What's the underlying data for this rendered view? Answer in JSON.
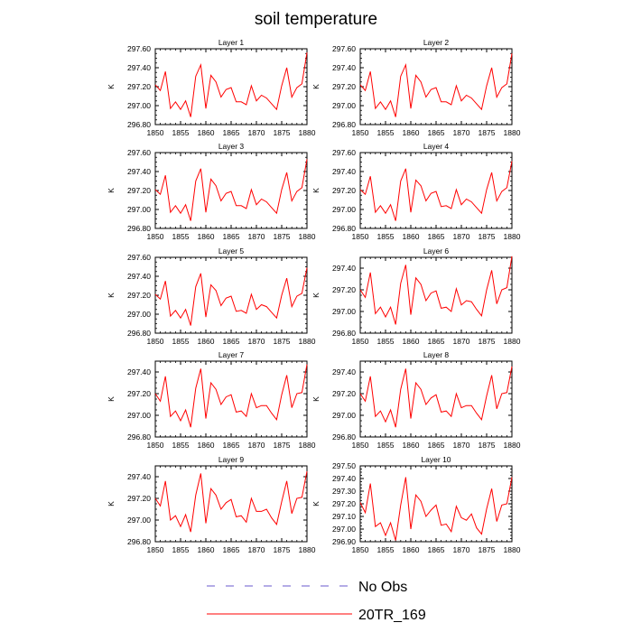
{
  "title": "soil temperature",
  "legend": [
    {
      "label": "No Obs",
      "color": "#6a5acd",
      "dash": true
    },
    {
      "label": "20TR_169",
      "color": "#ff0000",
      "dash": false
    }
  ],
  "chart_data": [
    {
      "type": "line",
      "title": "Layer 1",
      "ylabel": "K",
      "xlim": [
        1850,
        1880
      ],
      "ylim": [
        296.8,
        297.6
      ],
      "yticks": [
        "296.80",
        "297.00",
        "297.20",
        "297.40",
        "297.60"
      ],
      "xticks": [
        "1850",
        "1855",
        "1860",
        "1865",
        "1870",
        "1875",
        "1880"
      ],
      "series": [
        {
          "x": [
            1850,
            1851,
            1852,
            1853,
            1854,
            1855,
            1856,
            1857,
            1858,
            1859,
            1860,
            1861,
            1862,
            1863,
            1864,
            1865,
            1866,
            1867,
            1868,
            1869,
            1870,
            1871,
            1872,
            1873,
            1874,
            1875,
            1876,
            1877,
            1878,
            1879,
            1880
          ],
          "values": [
            297.22,
            297.16,
            297.36,
            296.97,
            297.04,
            296.96,
            297.05,
            296.88,
            297.31,
            297.43,
            296.97,
            297.32,
            297.25,
            297.09,
            297.17,
            297.19,
            297.04,
            297.04,
            297.01,
            297.21,
            297.05,
            297.11,
            297.08,
            297.02,
            296.96,
            297.21,
            297.4,
            297.09,
            297.19,
            297.23,
            297.56
          ],
          "color": "#ff0000"
        }
      ]
    },
    {
      "type": "line",
      "title": "Layer 2",
      "ylabel": "K",
      "xlim": [
        1850,
        1880
      ],
      "ylim": [
        296.8,
        297.6
      ],
      "yticks": [
        "296.80",
        "297.00",
        "297.20",
        "297.40",
        "297.60"
      ],
      "xticks": [
        "1850",
        "1855",
        "1860",
        "1865",
        "1870",
        "1875",
        "1880"
      ],
      "series": [
        {
          "x": [
            1850,
            1851,
            1852,
            1853,
            1854,
            1855,
            1856,
            1857,
            1858,
            1859,
            1860,
            1861,
            1862,
            1863,
            1864,
            1865,
            1866,
            1867,
            1868,
            1869,
            1870,
            1871,
            1872,
            1873,
            1874,
            1875,
            1876,
            1877,
            1878,
            1879,
            1880
          ],
          "values": [
            297.22,
            297.16,
            297.36,
            296.97,
            297.04,
            296.96,
            297.05,
            296.88,
            297.31,
            297.43,
            296.97,
            297.32,
            297.25,
            297.09,
            297.17,
            297.19,
            297.04,
            297.04,
            297.01,
            297.21,
            297.05,
            297.11,
            297.08,
            297.02,
            296.96,
            297.21,
            297.4,
            297.09,
            297.19,
            297.23,
            297.55
          ],
          "color": "#ff0000"
        }
      ]
    },
    {
      "type": "line",
      "title": "Layer 3",
      "ylabel": "K",
      "xlim": [
        1850,
        1880
      ],
      "ylim": [
        296.8,
        297.6
      ],
      "yticks": [
        "296.80",
        "297.00",
        "297.20",
        "297.40",
        "297.60"
      ],
      "xticks": [
        "1850",
        "1855",
        "1860",
        "1865",
        "1870",
        "1875",
        "1880"
      ],
      "series": [
        {
          "x": [
            1850,
            1851,
            1852,
            1853,
            1854,
            1855,
            1856,
            1857,
            1858,
            1859,
            1860,
            1861,
            1862,
            1863,
            1864,
            1865,
            1866,
            1867,
            1868,
            1869,
            1870,
            1871,
            1872,
            1873,
            1874,
            1875,
            1876,
            1877,
            1878,
            1879,
            1880
          ],
          "values": [
            297.21,
            297.16,
            297.36,
            296.97,
            297.04,
            296.96,
            297.05,
            296.88,
            297.3,
            297.43,
            296.97,
            297.32,
            297.25,
            297.09,
            297.17,
            297.19,
            297.04,
            297.04,
            297.01,
            297.21,
            297.05,
            297.11,
            297.08,
            297.02,
            296.96,
            297.21,
            297.39,
            297.09,
            297.19,
            297.23,
            297.53
          ],
          "color": "#ff0000"
        }
      ]
    },
    {
      "type": "line",
      "title": "Layer 4",
      "ylabel": "K",
      "xlim": [
        1850,
        1880
      ],
      "ylim": [
        296.8,
        297.6
      ],
      "yticks": [
        "296.80",
        "297.00",
        "297.20",
        "297.40",
        "297.60"
      ],
      "xticks": [
        "1850",
        "1855",
        "1860",
        "1865",
        "1870",
        "1875",
        "1880"
      ],
      "series": [
        {
          "x": [
            1850,
            1851,
            1852,
            1853,
            1854,
            1855,
            1856,
            1857,
            1858,
            1859,
            1860,
            1861,
            1862,
            1863,
            1864,
            1865,
            1866,
            1867,
            1868,
            1869,
            1870,
            1871,
            1872,
            1873,
            1874,
            1875,
            1876,
            1877,
            1878,
            1879,
            1880
          ],
          "values": [
            297.21,
            297.16,
            297.35,
            296.97,
            297.04,
            296.96,
            297.05,
            296.88,
            297.3,
            297.43,
            296.97,
            297.31,
            297.25,
            297.09,
            297.17,
            297.19,
            297.03,
            297.04,
            297.01,
            297.21,
            297.05,
            297.11,
            297.08,
            297.02,
            296.96,
            297.21,
            297.39,
            297.09,
            297.19,
            297.23,
            297.51
          ],
          "color": "#ff0000"
        }
      ]
    },
    {
      "type": "line",
      "title": "Layer 5",
      "ylabel": "K",
      "xlim": [
        1850,
        1880
      ],
      "ylim": [
        296.8,
        297.6
      ],
      "yticks": [
        "296.80",
        "297.00",
        "297.20",
        "297.40",
        "297.60"
      ],
      "xticks": [
        "1850",
        "1855",
        "1860",
        "1865",
        "1870",
        "1875",
        "1880"
      ],
      "series": [
        {
          "x": [
            1850,
            1851,
            1852,
            1853,
            1854,
            1855,
            1856,
            1857,
            1858,
            1859,
            1860,
            1861,
            1862,
            1863,
            1864,
            1865,
            1866,
            1867,
            1868,
            1869,
            1870,
            1871,
            1872,
            1873,
            1874,
            1875,
            1876,
            1877,
            1878,
            1879,
            1880
          ],
          "values": [
            297.21,
            297.16,
            297.35,
            296.98,
            297.04,
            296.96,
            297.05,
            296.88,
            297.29,
            297.43,
            296.97,
            297.31,
            297.25,
            297.09,
            297.17,
            297.19,
            297.03,
            297.04,
            297.01,
            297.21,
            297.05,
            297.1,
            297.08,
            297.02,
            296.96,
            297.2,
            297.38,
            297.08,
            297.19,
            297.22,
            297.49
          ],
          "color": "#ff0000"
        }
      ]
    },
    {
      "type": "line",
      "title": "Layer 6",
      "ylabel": "K",
      "xlim": [
        1850,
        1880
      ],
      "ylim": [
        296.8,
        297.5
      ],
      "yticks": [
        "296.80",
        "297.00",
        "297.20",
        "297.40"
      ],
      "xticks": [
        "1850",
        "1855",
        "1860",
        "1865",
        "1870",
        "1875",
        "1880"
      ],
      "series": [
        {
          "x": [
            1850,
            1851,
            1852,
            1853,
            1854,
            1855,
            1856,
            1857,
            1858,
            1859,
            1860,
            1861,
            1862,
            1863,
            1864,
            1865,
            1866,
            1867,
            1868,
            1869,
            1870,
            1871,
            1872,
            1873,
            1874,
            1875,
            1876,
            1877,
            1878,
            1879,
            1880
          ],
          "values": [
            297.2,
            297.13,
            297.36,
            296.98,
            297.04,
            296.95,
            297.04,
            296.88,
            297.26,
            297.43,
            296.97,
            297.31,
            297.25,
            297.1,
            297.17,
            297.19,
            297.03,
            297.04,
            297.0,
            297.21,
            297.06,
            297.1,
            297.09,
            297.02,
            296.96,
            297.2,
            297.38,
            297.07,
            297.2,
            297.22,
            297.51
          ],
          "color": "#ff0000"
        }
      ]
    },
    {
      "type": "line",
      "title": "Layer 7",
      "ylabel": "K",
      "xlim": [
        1850,
        1880
      ],
      "ylim": [
        296.8,
        297.5
      ],
      "yticks": [
        "296.80",
        "297.00",
        "297.20",
        "297.40"
      ],
      "xticks": [
        "1850",
        "1855",
        "1860",
        "1865",
        "1870",
        "1875",
        "1880"
      ],
      "series": [
        {
          "x": [
            1850,
            1851,
            1852,
            1853,
            1854,
            1855,
            1856,
            1857,
            1858,
            1859,
            1860,
            1861,
            1862,
            1863,
            1864,
            1865,
            1866,
            1867,
            1868,
            1869,
            1870,
            1871,
            1872,
            1873,
            1874,
            1875,
            1876,
            1877,
            1878,
            1879,
            1880
          ],
          "values": [
            297.2,
            297.13,
            297.36,
            296.99,
            297.04,
            296.95,
            297.05,
            296.89,
            297.25,
            297.43,
            296.97,
            297.3,
            297.24,
            297.1,
            297.17,
            297.19,
            297.03,
            297.04,
            296.99,
            297.2,
            297.07,
            297.09,
            297.09,
            297.02,
            296.96,
            297.19,
            297.37,
            297.07,
            297.2,
            297.21,
            297.47
          ],
          "color": "#ff0000"
        }
      ]
    },
    {
      "type": "line",
      "title": "Layer 8",
      "ylabel": "K",
      "xlim": [
        1850,
        1880
      ],
      "ylim": [
        296.8,
        297.5
      ],
      "yticks": [
        "296.80",
        "297.00",
        "297.20",
        "297.40"
      ],
      "xticks": [
        "1850",
        "1855",
        "1860",
        "1865",
        "1870",
        "1875",
        "1880"
      ],
      "series": [
        {
          "x": [
            1850,
            1851,
            1852,
            1853,
            1854,
            1855,
            1856,
            1857,
            1858,
            1859,
            1860,
            1861,
            1862,
            1863,
            1864,
            1865,
            1866,
            1867,
            1868,
            1869,
            1870,
            1871,
            1872,
            1873,
            1874,
            1875,
            1876,
            1877,
            1878,
            1879,
            1880
          ],
          "values": [
            297.2,
            297.13,
            297.36,
            296.99,
            297.04,
            296.94,
            297.05,
            296.89,
            297.24,
            297.43,
            296.97,
            297.3,
            297.24,
            297.1,
            297.16,
            297.19,
            297.03,
            297.04,
            296.99,
            297.2,
            297.07,
            297.09,
            297.09,
            297.02,
            296.96,
            297.18,
            297.37,
            297.06,
            297.2,
            297.21,
            297.45
          ],
          "color": "#ff0000"
        }
      ]
    },
    {
      "type": "line",
      "title": "Layer 9",
      "ylabel": "K",
      "xlim": [
        1850,
        1880
      ],
      "ylim": [
        296.8,
        297.5
      ],
      "yticks": [
        "296.80",
        "297.00",
        "297.20",
        "297.40"
      ],
      "xticks": [
        "1850",
        "1855",
        "1860",
        "1865",
        "1870",
        "1875",
        "1880"
      ],
      "series": [
        {
          "x": [
            1850,
            1851,
            1852,
            1853,
            1854,
            1855,
            1856,
            1857,
            1858,
            1859,
            1860,
            1861,
            1862,
            1863,
            1864,
            1865,
            1866,
            1867,
            1868,
            1869,
            1870,
            1871,
            1872,
            1873,
            1874,
            1875,
            1876,
            1877,
            1878,
            1879,
            1880
          ],
          "values": [
            297.2,
            297.13,
            297.36,
            297.0,
            297.04,
            296.94,
            297.05,
            296.89,
            297.23,
            297.43,
            296.97,
            297.29,
            297.23,
            297.1,
            297.16,
            297.19,
            297.03,
            297.04,
            296.98,
            297.2,
            297.08,
            297.08,
            297.1,
            297.02,
            296.96,
            297.17,
            297.36,
            297.06,
            297.2,
            297.21,
            297.45
          ],
          "color": "#ff0000"
        }
      ]
    },
    {
      "type": "line",
      "title": "Layer 10",
      "ylabel": "K",
      "xlim": [
        1850,
        1880
      ],
      "ylim": [
        296.9,
        297.5
      ],
      "yticks": [
        "296.90",
        "297.00",
        "297.10",
        "297.20",
        "297.30",
        "297.40",
        "297.50"
      ],
      "xticks": [
        "1850",
        "1855",
        "1860",
        "1865",
        "1870",
        "1875",
        "1880"
      ],
      "series": [
        {
          "x": [
            1850,
            1851,
            1852,
            1853,
            1854,
            1855,
            1856,
            1857,
            1858,
            1859,
            1860,
            1861,
            1862,
            1863,
            1864,
            1865,
            1866,
            1867,
            1868,
            1869,
            1870,
            1871,
            1872,
            1873,
            1874,
            1875,
            1876,
            1877,
            1878,
            1879,
            1880
          ],
          "values": [
            297.21,
            297.13,
            297.36,
            297.02,
            297.05,
            296.95,
            297.05,
            296.91,
            297.19,
            297.41,
            297.0,
            297.27,
            297.22,
            297.1,
            297.15,
            297.19,
            297.03,
            297.04,
            296.98,
            297.18,
            297.09,
            297.07,
            297.12,
            297.01,
            296.96,
            297.16,
            297.32,
            297.06,
            297.19,
            297.2,
            297.41
          ],
          "color": "#ff0000"
        }
      ]
    }
  ]
}
